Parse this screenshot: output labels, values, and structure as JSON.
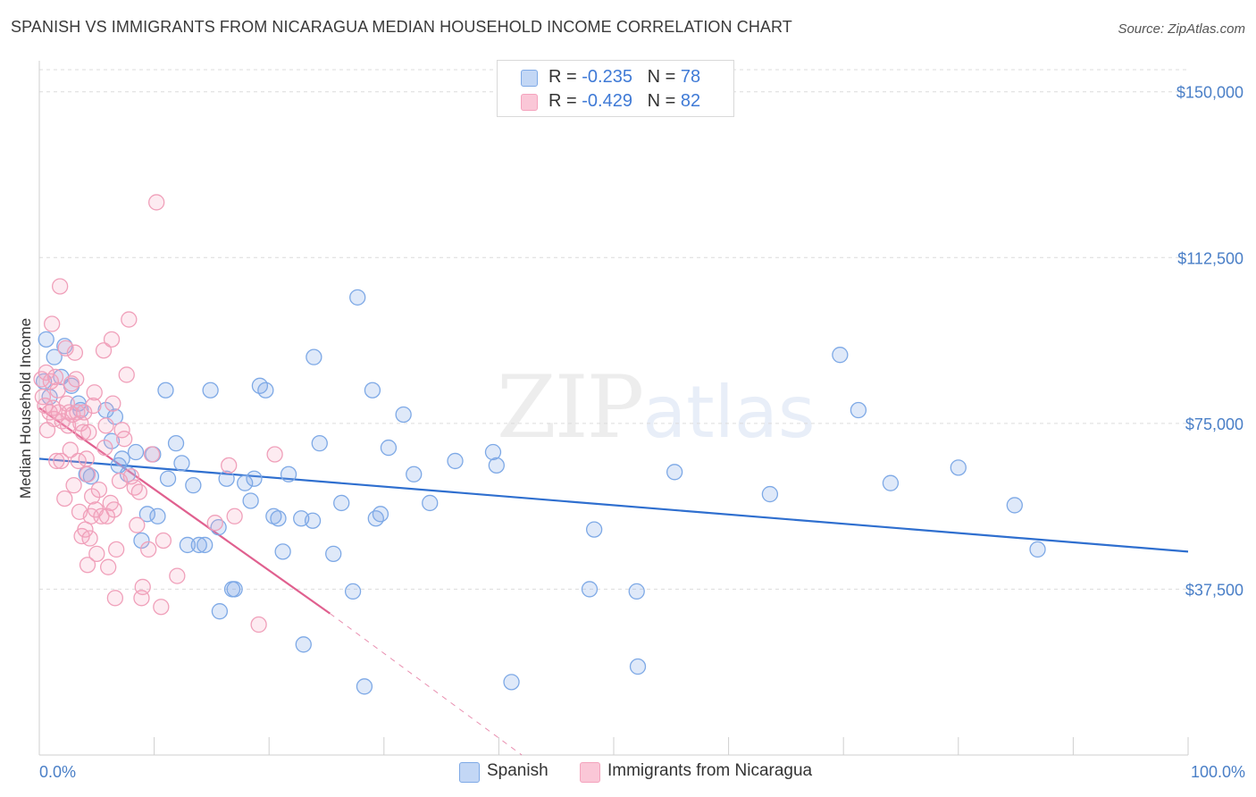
{
  "title": "SPANISH VS IMMIGRANTS FROM NICARAGUA MEDIAN HOUSEHOLD INCOME CORRELATION CHART",
  "source": "Source: ZipAtlas.com",
  "watermark": {
    "zip": "ZIP",
    "atlas": "atlas"
  },
  "legend": {
    "r_label": "R =",
    "n_label": "N =",
    "spanish": {
      "r": "-0.235",
      "n": "78"
    },
    "nicaragua": {
      "r": "-0.429",
      "n": "82"
    }
  },
  "chart_data": {
    "type": "scatter",
    "ylabel": "Median Household Income",
    "xlim": [
      0,
      100
    ],
    "ylim": [
      0,
      155000
    ],
    "x_tick_labels": [
      "0.0%",
      "100.0%"
    ],
    "y_ticks": [
      37500,
      75000,
      112500,
      150000
    ],
    "y_tick_labels": [
      "$37,500",
      "$75,000",
      "$112,500",
      "$150,000"
    ],
    "grid": "horizontal-dashed",
    "legend_position": "bottom",
    "series": [
      {
        "name": "Spanish",
        "color": "#7ea9e6",
        "trend_color": "#2f6fcf",
        "trend": {
          "x0": 0,
          "y0": 67000,
          "x1": 100,
          "y1": 46000
        },
        "points": [
          [
            0.4,
            84500
          ],
          [
            0.6,
            94000
          ],
          [
            0.9,
            81000
          ],
          [
            1.3,
            90000
          ],
          [
            1.9,
            85500
          ],
          [
            2.2,
            92500
          ],
          [
            2.8,
            83500
          ],
          [
            3.4,
            79500
          ],
          [
            3.6,
            78000
          ],
          [
            4.1,
            63500
          ],
          [
            4.5,
            63000
          ],
          [
            5.8,
            78000
          ],
          [
            6.3,
            71000
          ],
          [
            6.6,
            76500
          ],
          [
            6.9,
            65500
          ],
          [
            7.2,
            67000
          ],
          [
            7.7,
            63500
          ],
          [
            8.4,
            68500
          ],
          [
            8.9,
            48500
          ],
          [
            9.4,
            54500
          ],
          [
            9.9,
            68000
          ],
          [
            10.3,
            54000
          ],
          [
            11.0,
            82500
          ],
          [
            11.2,
            62500
          ],
          [
            11.9,
            70500
          ],
          [
            12.4,
            66000
          ],
          [
            12.9,
            47500
          ],
          [
            13.4,
            61000
          ],
          [
            13.9,
            47500
          ],
          [
            14.4,
            47500
          ],
          [
            14.9,
            82500
          ],
          [
            15.6,
            51500
          ],
          [
            15.7,
            32500
          ],
          [
            16.3,
            62500
          ],
          [
            16.8,
            37500
          ],
          [
            17.0,
            37500
          ],
          [
            17.9,
            61500
          ],
          [
            18.4,
            57500
          ],
          [
            18.7,
            62500
          ],
          [
            19.2,
            83500
          ],
          [
            19.7,
            82500
          ],
          [
            20.4,
            54000
          ],
          [
            20.8,
            53500
          ],
          [
            21.2,
            46000
          ],
          [
            21.7,
            63500
          ],
          [
            22.8,
            53500
          ],
          [
            23.0,
            25000
          ],
          [
            23.8,
            53000
          ],
          [
            23.9,
            90000
          ],
          [
            24.4,
            70500
          ],
          [
            25.6,
            45500
          ],
          [
            26.3,
            57000
          ],
          [
            27.3,
            37000
          ],
          [
            27.7,
            103500
          ],
          [
            28.3,
            15500
          ],
          [
            29.0,
            82500
          ],
          [
            29.3,
            53500
          ],
          [
            29.7,
            54500
          ],
          [
            30.4,
            69500
          ],
          [
            31.7,
            77000
          ],
          [
            32.6,
            63500
          ],
          [
            34.0,
            57000
          ],
          [
            36.2,
            66500
          ],
          [
            39.5,
            68500
          ],
          [
            39.8,
            65500
          ],
          [
            41.1,
            16500
          ],
          [
            47.9,
            37500
          ],
          [
            48.3,
            51000
          ],
          [
            52.0,
            37000
          ],
          [
            52.1,
            20000
          ],
          [
            55.3,
            64000
          ],
          [
            63.6,
            59000
          ],
          [
            69.7,
            90500
          ],
          [
            71.3,
            78000
          ],
          [
            74.1,
            61500
          ],
          [
            80.0,
            65000
          ],
          [
            84.9,
            56500
          ],
          [
            86.9,
            46500
          ]
        ]
      },
      {
        "name": "Immigrants from Nicaragua",
        "color": "#f4a3bd",
        "trend_color": "#e0608f",
        "trend": {
          "x0": 0,
          "y0": 78500,
          "x1": 25.3,
          "y1": 32000
        },
        "trend_dashed": {
          "x0": 25.3,
          "y0": 32000,
          "x1": 42,
          "y1": 0
        },
        "points": [
          [
            0.2,
            85000
          ],
          [
            0.3,
            81000
          ],
          [
            0.5,
            79000
          ],
          [
            0.6,
            86500
          ],
          [
            0.7,
            73500
          ],
          [
            0.9,
            77500
          ],
          [
            1.0,
            84500
          ],
          [
            1.1,
            97500
          ],
          [
            1.2,
            78500
          ],
          [
            1.3,
            76000
          ],
          [
            1.4,
            85500
          ],
          [
            1.5,
            66500
          ],
          [
            1.6,
            82500
          ],
          [
            1.7,
            77500
          ],
          [
            1.8,
            106000
          ],
          [
            1.9,
            66500
          ],
          [
            2.0,
            75500
          ],
          [
            2.2,
            58000
          ],
          [
            2.3,
            92000
          ],
          [
            2.4,
            79500
          ],
          [
            2.5,
            74500
          ],
          [
            2.6,
            77500
          ],
          [
            2.7,
            69000
          ],
          [
            2.8,
            84000
          ],
          [
            2.9,
            77000
          ],
          [
            3.0,
            61000
          ],
          [
            3.1,
            91000
          ],
          [
            3.2,
            85000
          ],
          [
            3.3,
            77500
          ],
          [
            3.4,
            66500
          ],
          [
            3.5,
            55000
          ],
          [
            3.6,
            75000
          ],
          [
            3.7,
            49500
          ],
          [
            3.8,
            73000
          ],
          [
            3.9,
            77500
          ],
          [
            4.0,
            51000
          ],
          [
            4.1,
            67000
          ],
          [
            4.2,
            63500
          ],
          [
            4.3,
            73000
          ],
          [
            4.4,
            49000
          ],
          [
            4.5,
            54000
          ],
          [
            4.6,
            58500
          ],
          [
            4.7,
            79000
          ],
          [
            4.8,
            82000
          ],
          [
            4.9,
            55500
          ],
          [
            5.0,
            45500
          ],
          [
            5.2,
            60000
          ],
          [
            5.4,
            54000
          ],
          [
            5.6,
            91500
          ],
          [
            5.7,
            69500
          ],
          [
            5.8,
            74500
          ],
          [
            5.9,
            54000
          ],
          [
            6.0,
            42500
          ],
          [
            6.2,
            57000
          ],
          [
            6.4,
            79500
          ],
          [
            6.5,
            55500
          ],
          [
            6.6,
            35500
          ],
          [
            6.7,
            46500
          ],
          [
            7.0,
            62000
          ],
          [
            7.2,
            73500
          ],
          [
            7.4,
            71500
          ],
          [
            7.6,
            86000
          ],
          [
            7.8,
            98500
          ],
          [
            8.0,
            63000
          ],
          [
            8.3,
            60500
          ],
          [
            8.5,
            52000
          ],
          [
            8.7,
            59500
          ],
          [
            8.9,
            35500
          ],
          [
            9.0,
            38000
          ],
          [
            9.5,
            46500
          ],
          [
            9.8,
            68000
          ],
          [
            10.2,
            125000
          ],
          [
            10.6,
            33500
          ],
          [
            10.8,
            48500
          ],
          [
            12.0,
            40500
          ],
          [
            15.3,
            52500
          ],
          [
            16.5,
            65500
          ],
          [
            17.0,
            54000
          ],
          [
            19.1,
            29500
          ],
          [
            20.5,
            68000
          ],
          [
            6.3,
            94000
          ],
          [
            4.2,
            43000
          ]
        ]
      }
    ]
  }
}
